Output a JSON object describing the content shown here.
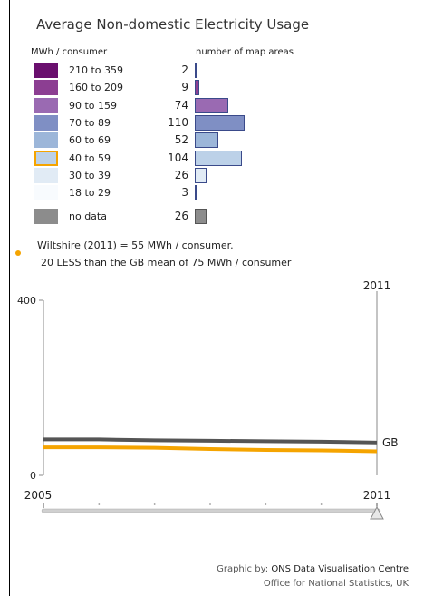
{
  "title": "Average Non-domestic Electricity Usage",
  "legend": {
    "left_header": "MWh / consumer",
    "right_header": "number of map areas",
    "bins": [
      {
        "range": "210 to 359",
        "count": 2,
        "color": "#6a0f6e"
      },
      {
        "range": "160 to 209",
        "count": 9,
        "color": "#8c3e92"
      },
      {
        "range": "90 to 159",
        "count": 74,
        "color": "#9a6ab2"
      },
      {
        "range": "70 to 89",
        "count": 110,
        "color": "#7f8fc4"
      },
      {
        "range": "60 to 69",
        "count": 52,
        "color": "#9cb6d9"
      },
      {
        "range": "40 to 59",
        "count": 104,
        "color": "#bcd1e8",
        "selected": true
      },
      {
        "range": "30 to 39",
        "count": 26,
        "color": "#e1ebf5"
      },
      {
        "range": "18 to 29",
        "count": 3,
        "color": "#f8fbfe"
      }
    ],
    "no_data": {
      "label": "no data",
      "count": 26,
      "color": "#8c8c8c"
    },
    "selected_color": "#f5a400"
  },
  "info": {
    "line1": "Wiltshire (2011) = 55 MWh / consumer.",
    "line2": "20 LESS than the GB mean of 75 MWh / consumer"
  },
  "chart_data": {
    "type": "line",
    "x": [
      2005,
      2006,
      2007,
      2008,
      2009,
      2010,
      2011
    ],
    "xlim": [
      2005,
      2011
    ],
    "ylim": [
      0,
      400
    ],
    "y_ticks": [
      "0",
      "400"
    ],
    "x_tick_labels": [
      "2005",
      "2011"
    ],
    "selected_year_label": "2011",
    "series": [
      {
        "name": "GB",
        "color": "#555555",
        "values": [
          82,
          82,
          80,
          79,
          78,
          77,
          75
        ]
      },
      {
        "color": "#f5a400",
        "values": [
          64,
          64,
          63,
          60,
          58,
          57,
          55
        ]
      }
    ]
  },
  "footer": {
    "prefix": "Graphic by: ",
    "org": "ONS Data Visualisation Centre",
    "line2": "Office for National Statistics, UK"
  }
}
